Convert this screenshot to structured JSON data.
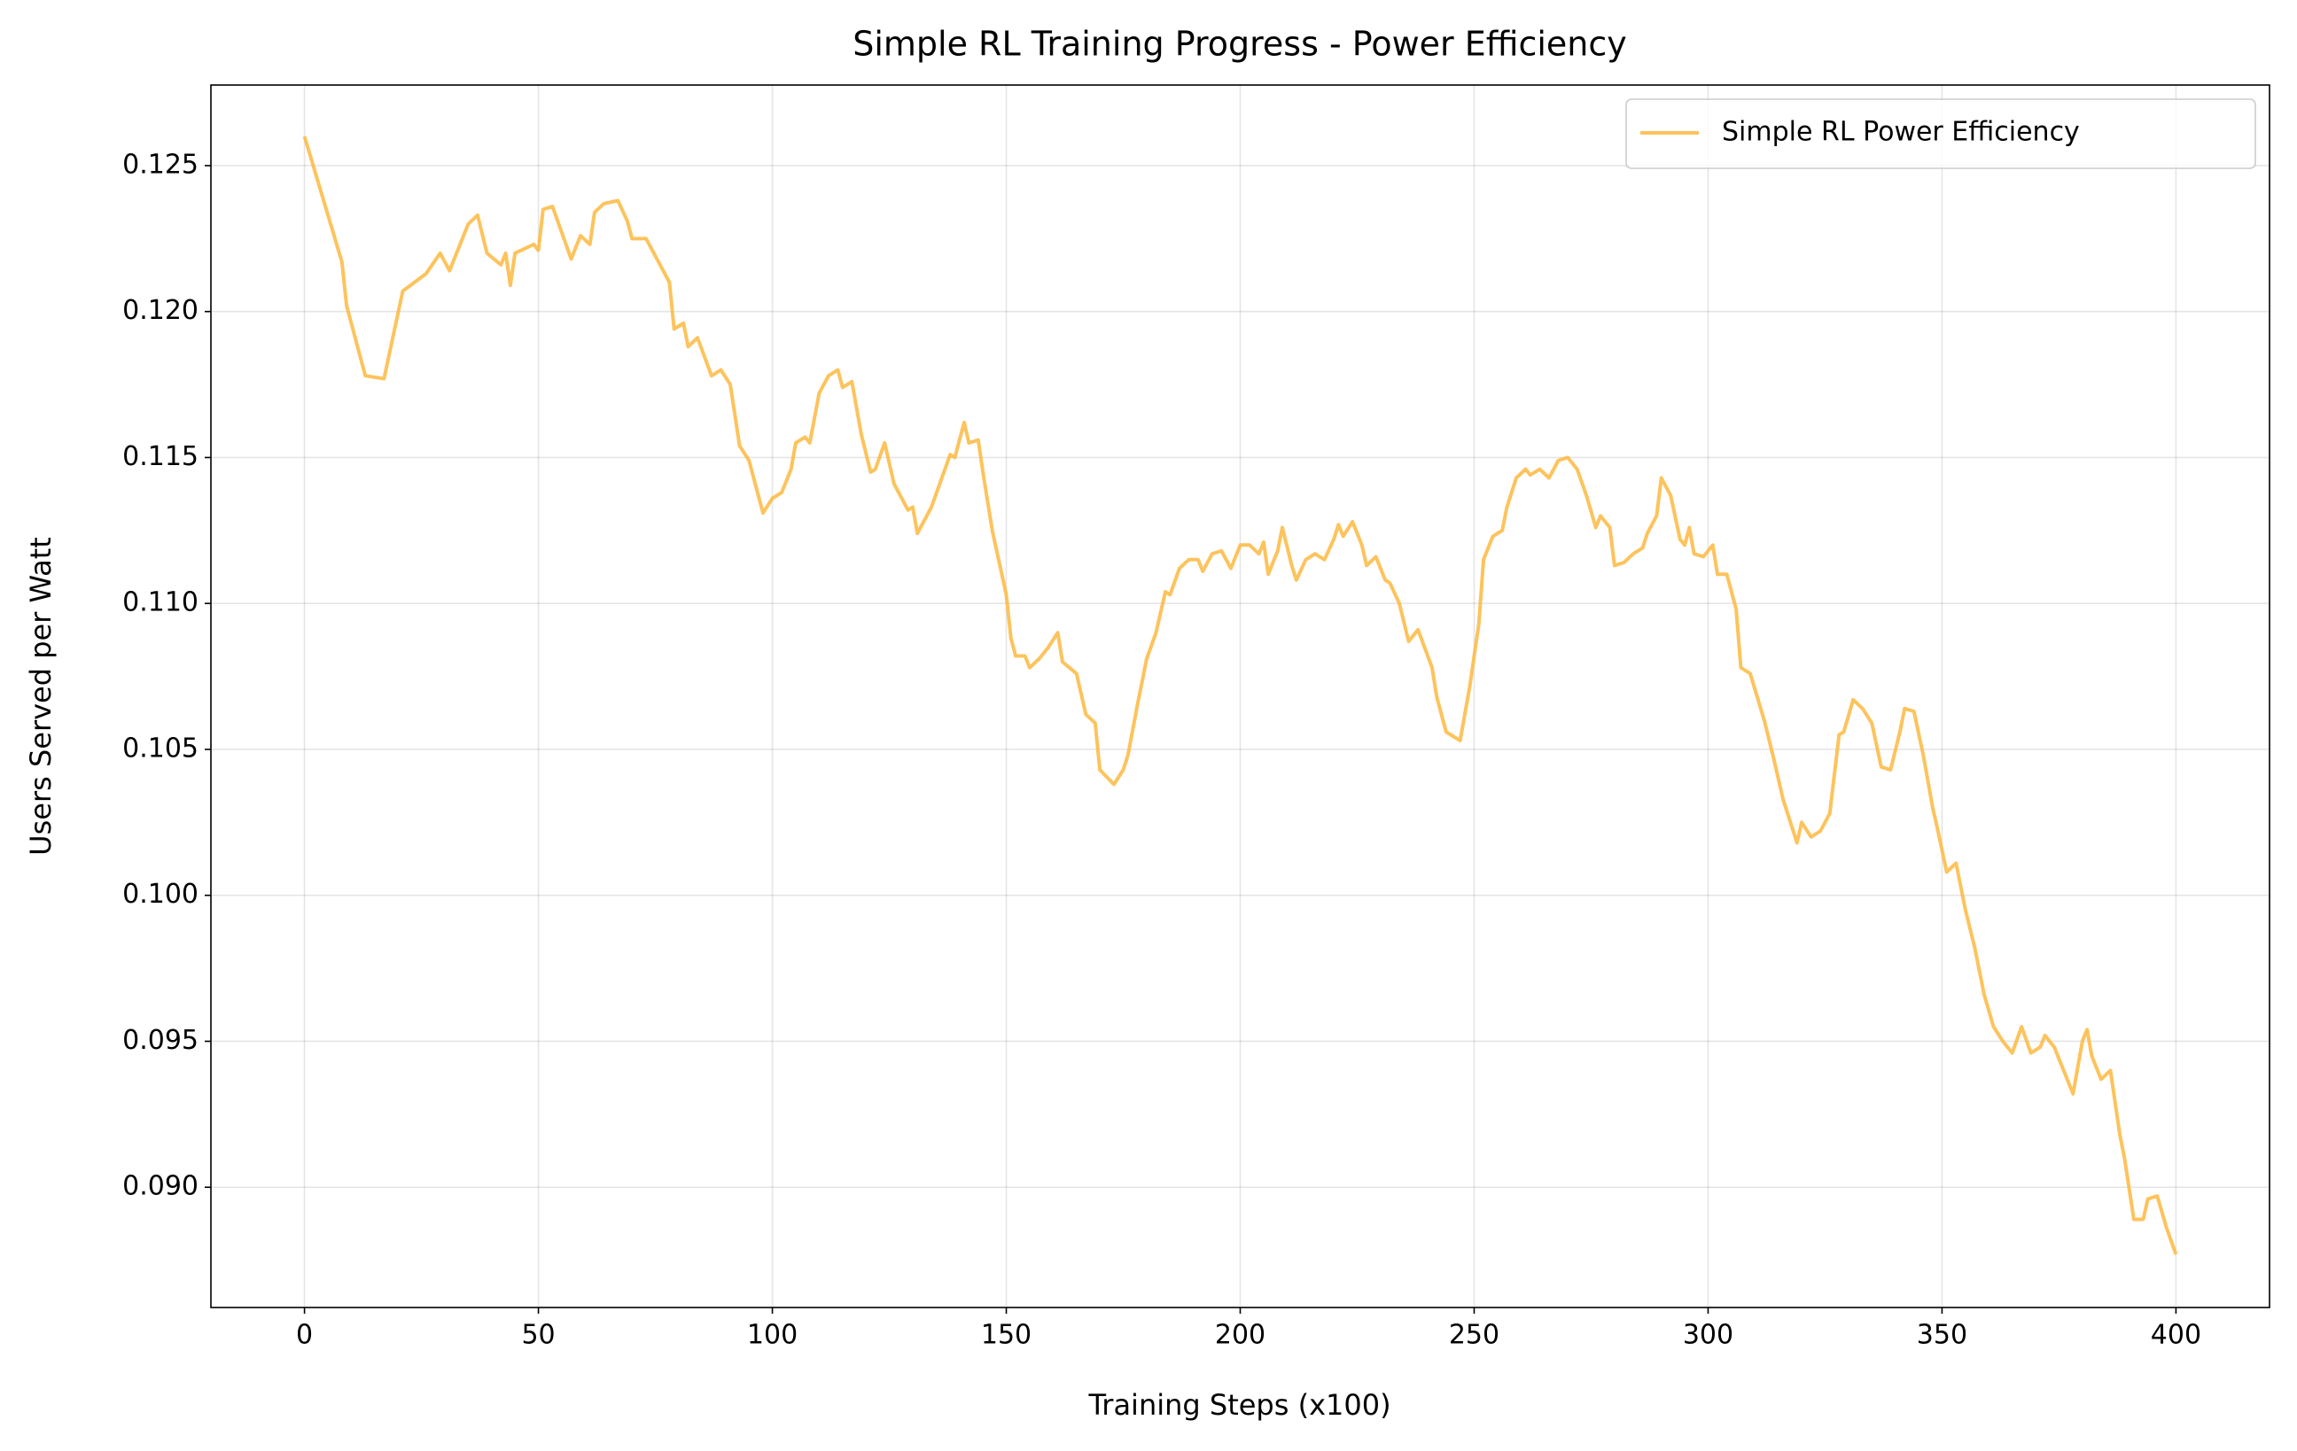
{
  "chart_data": {
    "type": "line",
    "title": "Simple RL Training Progress - Power Efficiency",
    "xlabel": "Training Steps (x100)",
    "ylabel": "Users Served per Watt",
    "x": [
      0,
      8,
      9,
      13,
      17,
      21,
      26,
      29,
      31,
      35,
      37,
      39,
      42,
      43,
      44,
      45,
      49,
      50,
      51,
      53,
      57,
      59,
      61,
      62,
      64,
      67,
      69,
      70,
      73,
      75,
      78,
      79,
      81,
      82,
      84,
      87,
      89,
      91,
      93,
      95,
      98,
      100,
      102,
      104,
      105,
      107,
      108,
      110,
      112,
      114,
      115,
      117,
      119,
      121,
      122,
      124,
      126,
      127,
      129,
      130,
      131,
      132,
      134,
      136,
      138,
      139,
      141,
      142,
      144,
      145,
      147,
      150,
      151,
      152,
      154,
      155,
      157,
      159,
      161,
      162,
      165,
      167,
      169,
      170,
      173,
      175,
      176,
      178,
      180,
      182,
      184,
      185,
      187,
      189,
      191,
      192,
      194,
      196,
      198,
      200,
      202,
      204,
      205,
      206,
      208,
      209,
      211,
      212,
      214,
      216,
      218,
      220,
      221,
      222,
      224,
      226,
      227,
      229,
      231,
      232,
      234,
      236,
      238,
      241,
      242,
      244,
      246,
      247,
      249,
      251,
      252,
      254,
      256,
      257,
      259,
      261,
      262,
      264,
      266,
      268,
      270,
      272,
      274,
      276,
      277,
      279,
      280,
      282,
      284,
      286,
      287,
      289,
      290,
      292,
      294,
      295,
      296,
      297,
      299,
      301,
      302,
      304,
      306,
      307,
      309,
      312,
      314,
      316,
      319,
      320,
      322,
      324,
      326,
      328,
      329,
      331,
      333,
      335,
      337,
      339,
      341,
      342,
      344,
      346,
      348,
      349,
      351,
      353,
      355,
      357,
      359,
      361,
      363,
      365,
      367,
      369,
      371,
      372,
      374,
      376,
      378,
      380,
      381,
      382,
      384,
      386,
      388,
      389,
      391,
      393,
      394,
      396,
      398,
      400
    ],
    "series": [
      {
        "name": "Simple RL Power Efficiency",
        "color": "#fdb83f",
        "values": [
          0.126,
          0.1217,
          0.1202,
          0.1178,
          0.1177,
          0.1207,
          0.1213,
          0.122,
          0.1214,
          0.123,
          0.1233,
          0.122,
          0.1216,
          0.122,
          0.1209,
          0.122,
          0.1223,
          0.1221,
          0.1235,
          0.1236,
          0.1218,
          0.1226,
          0.1223,
          0.1234,
          0.1237,
          0.1238,
          0.1231,
          0.1225,
          0.1225,
          0.1219,
          0.121,
          0.1194,
          0.1196,
          0.1188,
          0.1191,
          0.1178,
          0.118,
          0.1175,
          0.1154,
          0.1149,
          0.1131,
          0.1136,
          0.1138,
          0.1146,
          0.1155,
          0.1157,
          0.1155,
          0.1172,
          0.1178,
          0.118,
          0.1174,
          0.1176,
          0.1158,
          0.1145,
          0.1146,
          0.1155,
          0.1141,
          0.1138,
          0.1132,
          0.1133,
          0.1124,
          0.1127,
          0.1133,
          0.1142,
          0.1151,
          0.115,
          0.1162,
          0.1155,
          0.1156,
          0.1145,
          0.1125,
          0.1103,
          0.1088,
          0.1082,
          0.1082,
          0.1078,
          0.1081,
          0.1085,
          0.109,
          0.108,
          0.1076,
          0.1062,
          0.1059,
          0.1043,
          0.1038,
          0.1043,
          0.1048,
          0.1065,
          0.1081,
          0.109,
          0.1104,
          0.1103,
          0.1112,
          0.1115,
          0.1115,
          0.1111,
          0.1117,
          0.1118,
          0.1112,
          0.112,
          0.112,
          0.1117,
          0.1121,
          0.111,
          0.1118,
          0.1126,
          0.1113,
          0.1108,
          0.1115,
          0.1117,
          0.1115,
          0.1122,
          0.1127,
          0.1123,
          0.1128,
          0.112,
          0.1113,
          0.1116,
          0.1108,
          0.1107,
          0.11,
          0.1087,
          0.1091,
          0.1078,
          0.1068,
          0.1056,
          0.1054,
          0.1053,
          0.1071,
          0.1093,
          0.1115,
          0.1123,
          0.1125,
          0.1133,
          0.1143,
          0.1146,
          0.1144,
          0.1146,
          0.1143,
          0.1149,
          0.115,
          0.1146,
          0.1137,
          0.1126,
          0.113,
          0.1126,
          0.1113,
          0.1114,
          0.1117,
          0.1119,
          0.1124,
          0.113,
          0.1143,
          0.1137,
          0.1122,
          0.112,
          0.1126,
          0.1117,
          0.1116,
          0.112,
          0.111,
          0.111,
          0.1098,
          0.1078,
          0.1076,
          0.106,
          0.1047,
          0.1033,
          0.1018,
          0.1025,
          0.102,
          0.1022,
          0.1028,
          0.1055,
          0.1056,
          0.1067,
          0.1064,
          0.1059,
          0.1044,
          0.1043,
          0.1056,
          0.1064,
          0.1063,
          0.1048,
          0.103,
          0.1023,
          0.1008,
          0.1011,
          0.0995,
          0.0982,
          0.0966,
          0.0955,
          0.095,
          0.0946,
          0.0955,
          0.0946,
          0.0948,
          0.0952,
          0.0948,
          0.094,
          0.0932,
          0.095,
          0.0954,
          0.0945,
          0.0937,
          0.094,
          0.0918,
          0.091,
          0.0889,
          0.0889,
          0.0896,
          0.0897,
          0.0886,
          0.0877
        ]
      }
    ],
    "xlim": [
      -20,
      420
    ],
    "ylim": [
      0.08588,
      0.12776
    ],
    "xticks": [
      0,
      50,
      100,
      150,
      200,
      250,
      300,
      350,
      400
    ],
    "yticks": [
      {
        "value": 0.09,
        "label": "0.090"
      },
      0.095,
      {
        "value": 0.1,
        "label": "0.100"
      },
      0.105,
      {
        "value": 0.11,
        "label": "0.110"
      },
      0.115,
      {
        "value": 0.12,
        "label": "0.120"
      },
      0.125
    ],
    "grid": true,
    "legend": "upper right"
  }
}
